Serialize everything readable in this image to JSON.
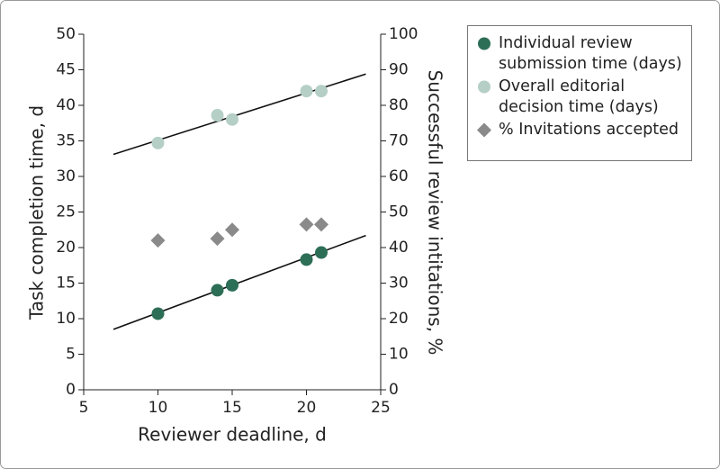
{
  "chart_data": {
    "type": "scatter",
    "xlabel": "Reviewer deadline, d",
    "ylabel": "Task completion time, d",
    "y2label": "Successful review intitations, %",
    "xlim": [
      5,
      25
    ],
    "xticks": [
      5,
      10,
      15,
      20,
      25
    ],
    "ylim": [
      0,
      50
    ],
    "yticks": [
      0,
      5,
      10,
      15,
      20,
      25,
      30,
      35,
      40,
      45,
      50
    ],
    "y2lim": [
      0,
      100
    ],
    "y2ticks": [
      0,
      10,
      20,
      30,
      40,
      50,
      60,
      70,
      80,
      90,
      100
    ],
    "legend": "upper right",
    "x": [
      10,
      14,
      15,
      20,
      21
    ],
    "series": [
      {
        "name": "Individual review submission time (days)",
        "color": "#2d6e56",
        "marker": "circle",
        "values": [
          10.7,
          14.0,
          14.7,
          18.3,
          19.3
        ]
      },
      {
        "name": "Overall editorial decision time (days)",
        "color": "#b5cfc6",
        "marker": "circle",
        "values": [
          34.7,
          38.6,
          38.0,
          42.0,
          42.0
        ]
      },
      {
        "name": "% Invitations accepted",
        "color": "#8a8a8a",
        "marker": "diamond",
        "axis": "y2",
        "values": [
          42.0,
          42.5,
          45.0,
          46.5,
          46.5
        ]
      }
    ],
    "trendlines": [
      {
        "color": "#111111",
        "x": [
          7,
          24
        ],
        "values": [
          8.5,
          21.7
        ]
      },
      {
        "color": "#111111",
        "x": [
          7,
          24
        ],
        "values": [
          33.1,
          44.4
        ]
      }
    ]
  }
}
